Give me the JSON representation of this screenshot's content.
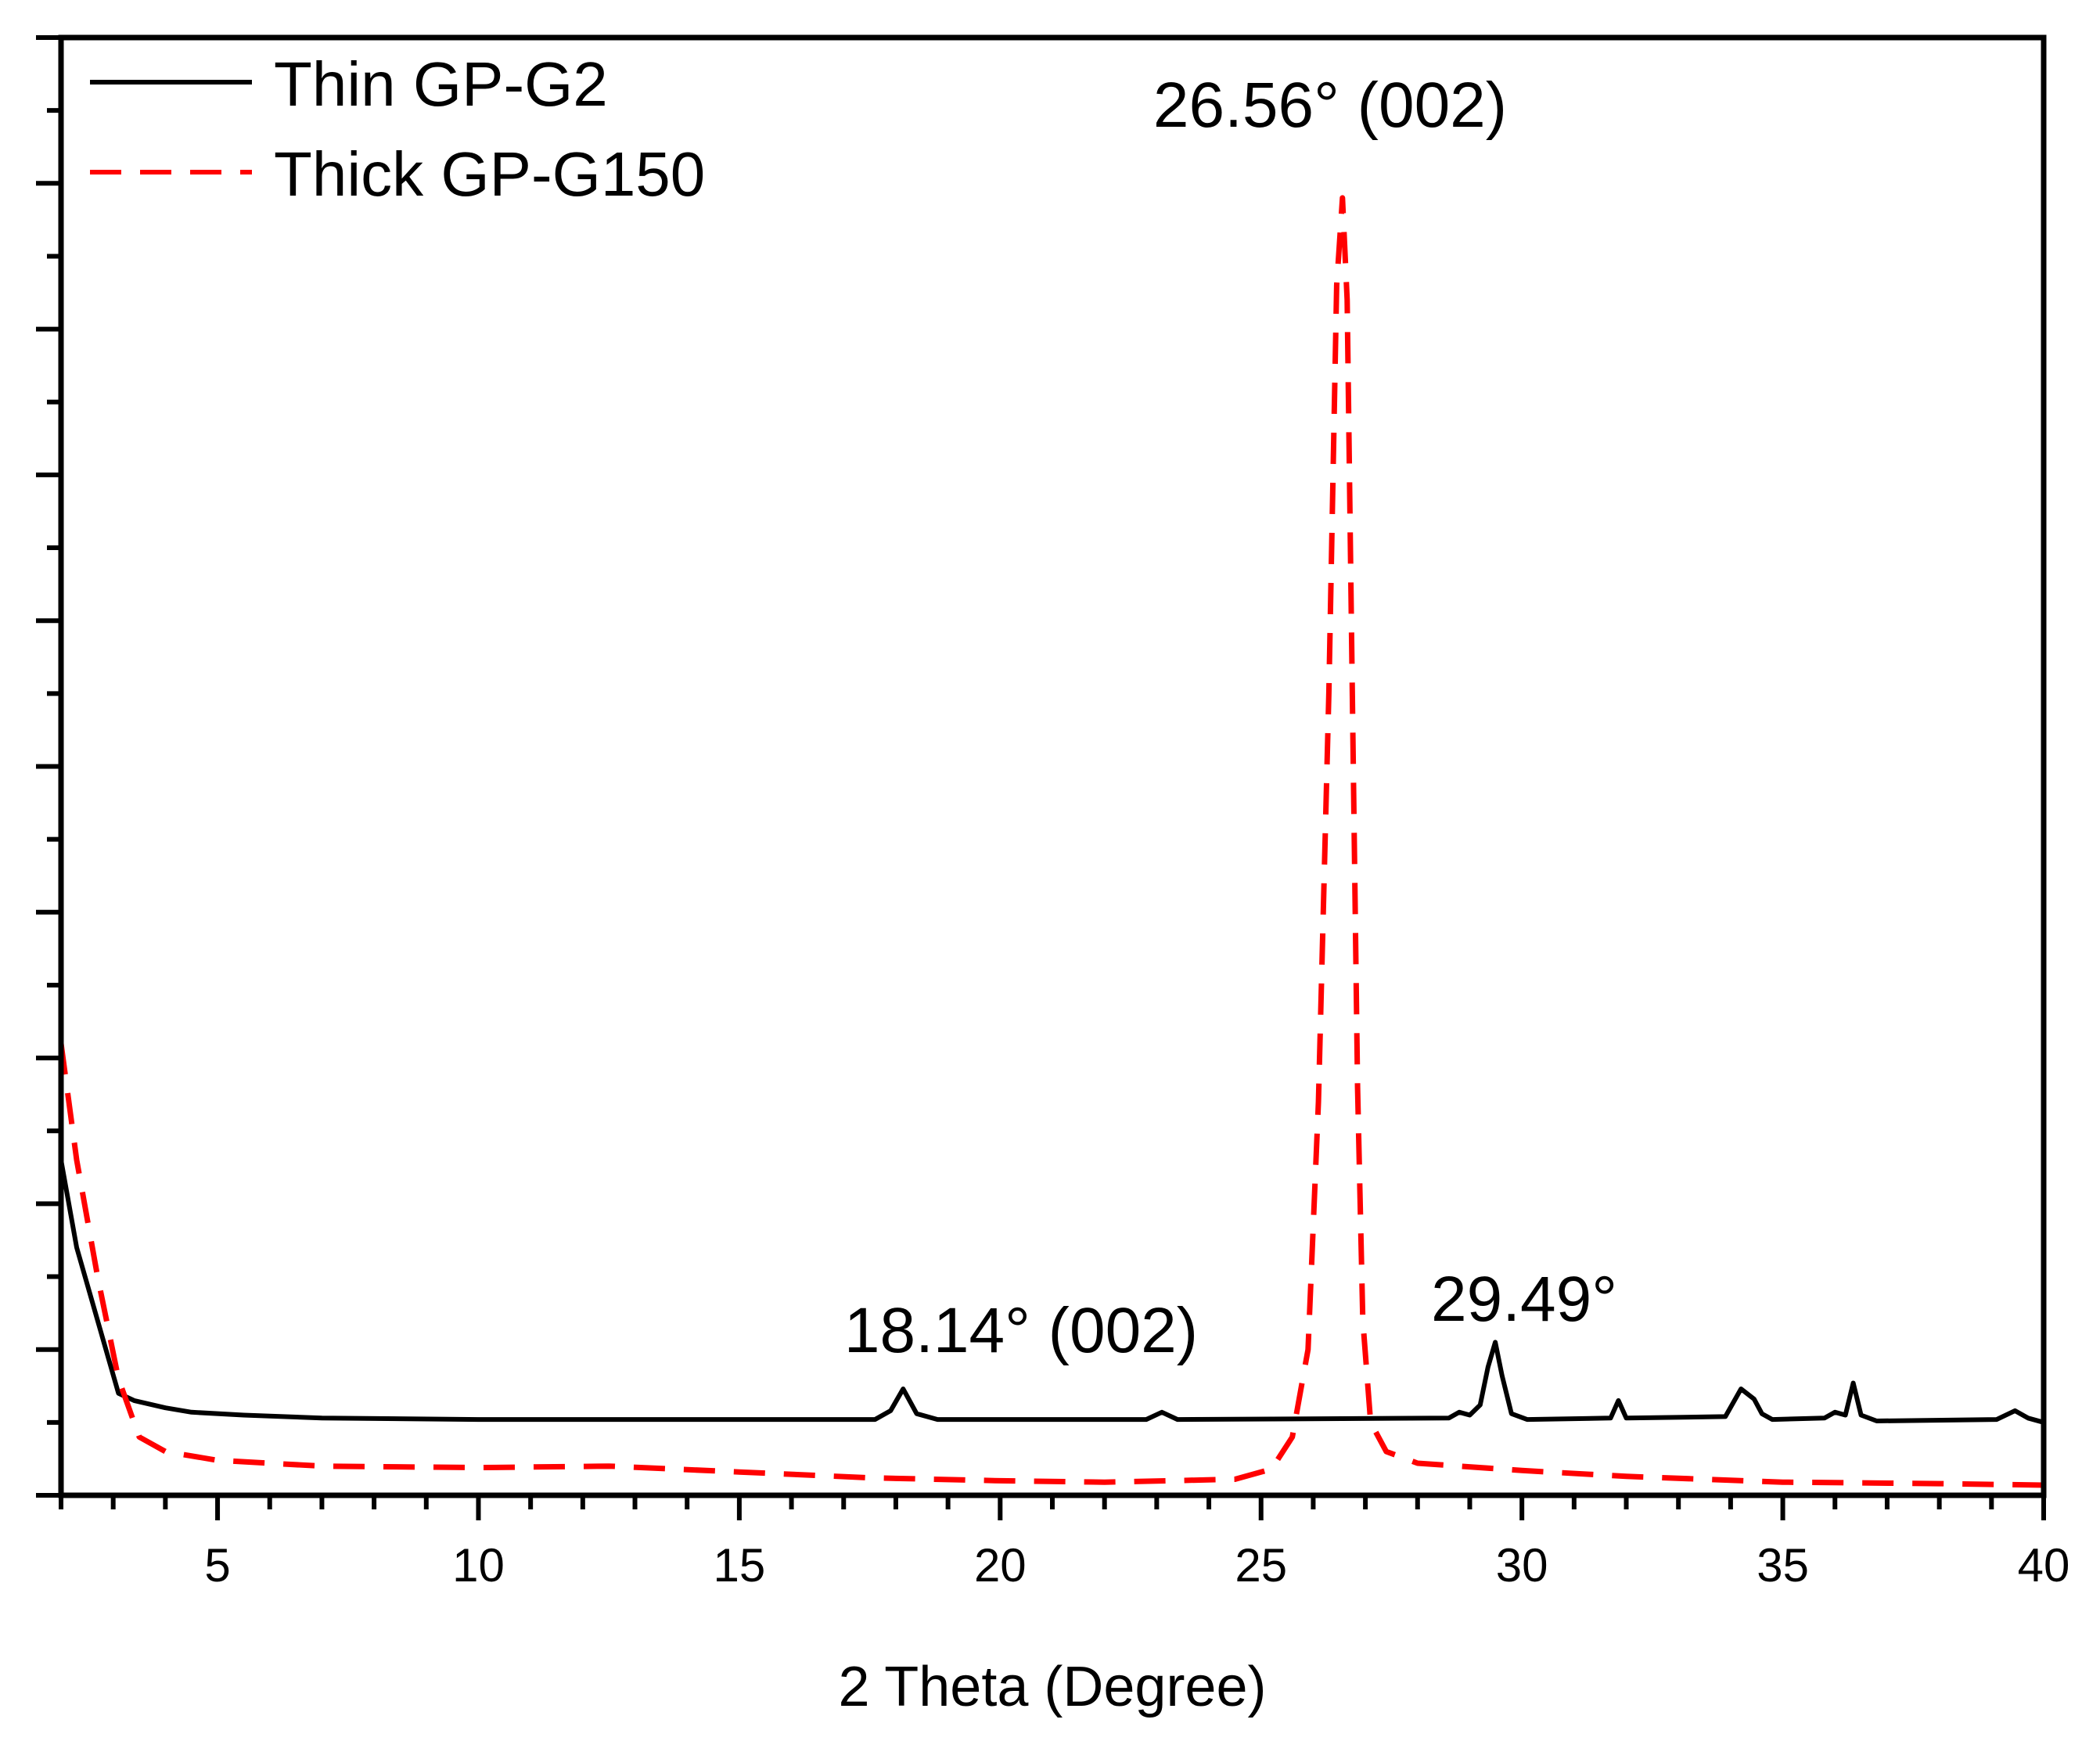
{
  "chart_data": {
    "type": "line",
    "title": "",
    "xlabel": "2 Theta (Degree)",
    "ylabel": "",
    "xlim": [
      2,
      40
    ],
    "ylim": [
      0,
      100
    ],
    "x_ticks": [
      "5",
      "10",
      "15",
      "20",
      "25",
      "30",
      "35",
      "40"
    ],
    "y_ticks_labeled": false,
    "legend_position": "top-left",
    "series": [
      {
        "name": "Thin GP-G2",
        "color": "#000000",
        "style": "solid",
        "points": [
          [
            2.0,
            23
          ],
          [
            2.3,
            17
          ],
          [
            2.7,
            12
          ],
          [
            3.1,
            7
          ],
          [
            3.4,
            6.5
          ],
          [
            4.0,
            6
          ],
          [
            4.5,
            5.7
          ],
          [
            5.5,
            5.5
          ],
          [
            7,
            5.3
          ],
          [
            10,
            5.2
          ],
          [
            15,
            5.2
          ],
          [
            17.6,
            5.2
          ],
          [
            17.9,
            5.8
          ],
          [
            18.14,
            7.3
          ],
          [
            18.4,
            5.6
          ],
          [
            18.8,
            5.2
          ],
          [
            22.8,
            5.2
          ],
          [
            23.1,
            5.7
          ],
          [
            23.4,
            5.2
          ],
          [
            28.6,
            5.3
          ],
          [
            28.8,
            5.7
          ],
          [
            29.0,
            5.5
          ],
          [
            29.2,
            6.2
          ],
          [
            29.35,
            8.8
          ],
          [
            29.49,
            10.5
          ],
          [
            29.62,
            8.2
          ],
          [
            29.8,
            5.6
          ],
          [
            30.1,
            5.2
          ],
          [
            31.7,
            5.3
          ],
          [
            31.85,
            6.5
          ],
          [
            32.0,
            5.3
          ],
          [
            33.9,
            5.4
          ],
          [
            34.2,
            7.3
          ],
          [
            34.45,
            6.6
          ],
          [
            34.6,
            5.6
          ],
          [
            34.8,
            5.2
          ],
          [
            35.8,
            5.3
          ],
          [
            36.0,
            5.7
          ],
          [
            36.2,
            5.5
          ],
          [
            36.35,
            7.7
          ],
          [
            36.5,
            5.5
          ],
          [
            36.8,
            5.1
          ],
          [
            39.1,
            5.2
          ],
          [
            39.45,
            5.8
          ],
          [
            39.7,
            5.3
          ],
          [
            40,
            5.0
          ]
        ]
      },
      {
        "name": "Thick GP-G150",
        "color": "#ff0000",
        "style": "dashed",
        "points": [
          [
            2.0,
            31
          ],
          [
            2.3,
            23
          ],
          [
            2.7,
            15
          ],
          [
            3.1,
            8
          ],
          [
            3.5,
            4
          ],
          [
            4.0,
            3
          ],
          [
            5,
            2.4
          ],
          [
            7,
            2.0
          ],
          [
            10,
            1.9
          ],
          [
            12.5,
            2.0
          ],
          [
            15,
            1.6
          ],
          [
            17.5,
            1.2
          ],
          [
            20,
            1.0
          ],
          [
            22,
            0.9
          ],
          [
            24.5,
            1.1
          ],
          [
            25.2,
            1.8
          ],
          [
            25.6,
            4
          ],
          [
            25.9,
            10
          ],
          [
            26.1,
            27
          ],
          [
            26.3,
            55
          ],
          [
            26.45,
            83
          ],
          [
            26.56,
            89
          ],
          [
            26.65,
            82
          ],
          [
            26.75,
            55
          ],
          [
            26.85,
            28
          ],
          [
            26.95,
            12
          ],
          [
            27.1,
            5
          ],
          [
            27.4,
            3
          ],
          [
            28,
            2.2
          ],
          [
            30,
            1.7
          ],
          [
            32,
            1.3
          ],
          [
            35,
            0.9
          ],
          [
            38,
            0.8
          ],
          [
            40,
            0.7
          ]
        ]
      }
    ],
    "annotations": [
      {
        "text": "26.56° (002)",
        "x": 26.56
      },
      {
        "text": "18.14° (002)",
        "x": 18.14
      },
      {
        "text": "29.49°",
        "x": 29.49
      }
    ]
  }
}
